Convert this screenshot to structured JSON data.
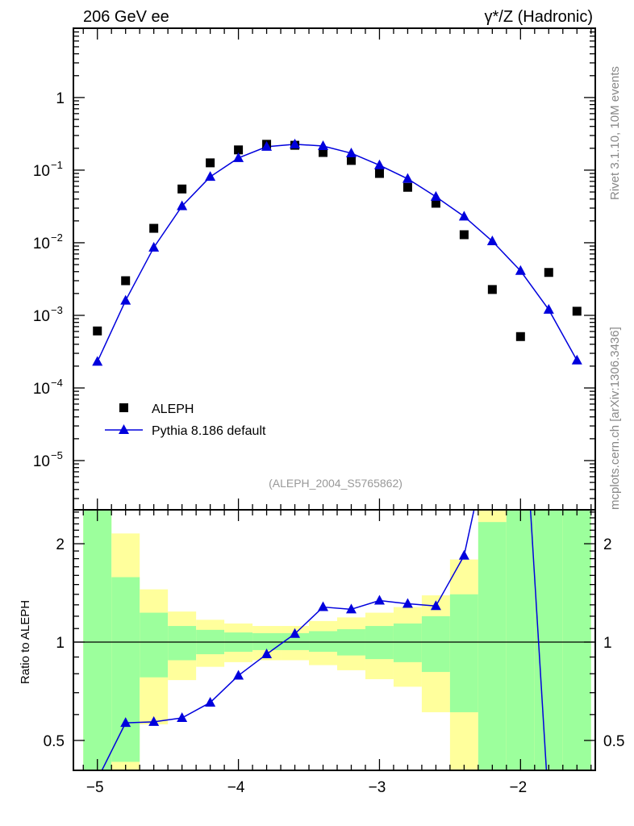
{
  "header": {
    "left_title": "206 GeV ee",
    "right_title": "γ*/Z (Hadronic)",
    "side_text_top": "Rivet 3.1.10,  10M events",
    "side_text_bottom": "mcplots.cern.ch [arXiv:1306.3436]",
    "analysis_id": "(ALEPH_2004_S5765862)"
  },
  "colors": {
    "data": "#000000",
    "mc": "#0000dd",
    "band_inner": "#9cff9c",
    "band_outer": "#ffff9c"
  },
  "chart_data": [
    {
      "type": "scatter",
      "panel": "main",
      "yscale": "log",
      "xlim": [
        -5.17,
        -1.47
      ],
      "ylim": [
        2.1e-06,
        9.0
      ],
      "ytick_labels": [
        {
          "value": 1,
          "label": "1"
        },
        {
          "value": 0.1,
          "label": "10",
          "exp": "−1"
        },
        {
          "value": 0.01,
          "label": "10",
          "exp": "−2"
        },
        {
          "value": 0.001,
          "label": "10",
          "exp": "−3"
        },
        {
          "value": 0.0001,
          "label": "10",
          "exp": "−4"
        },
        {
          "value": 1e-05,
          "label": "10",
          "exp": "−5"
        }
      ],
      "legend": {
        "placement": "bottom-left",
        "entries": [
          "ALEPH",
          "Pythia 8.186 default"
        ]
      },
      "x": [
        -5.0,
        -4.8,
        -4.6,
        -4.4,
        -4.2,
        -4.0,
        -3.8,
        -3.6,
        -3.4,
        -3.2,
        -3.0,
        -2.8,
        -2.6,
        -2.4,
        -2.2,
        -2.0,
        -1.8,
        -1.6
      ],
      "series": [
        {
          "name": "ALEPH",
          "marker": "square",
          "values": [
            0.00061,
            0.003,
            0.0158,
            0.055,
            0.126,
            0.19,
            0.227,
            0.22,
            0.175,
            0.136,
            0.09,
            0.058,
            0.035,
            0.0129,
            0.00227,
            0.00051,
            0.0039,
            0.00114
          ]
        },
        {
          "name": "Pythia 8.186 default",
          "marker": "triangle",
          "values": [
            0.00023,
            0.0016,
            0.0086,
            0.032,
            0.081,
            0.147,
            0.21,
            0.227,
            0.215,
            0.171,
            0.117,
            0.076,
            0.043,
            0.023,
            0.0105,
            0.0041,
            0.0012,
            0.00024
          ]
        }
      ]
    },
    {
      "type": "line",
      "panel": "ratio",
      "yscale": "log",
      "ylabel": "Ratio to ALEPH",
      "xlim": [
        -5.17,
        -1.47
      ],
      "ylim": [
        0.405,
        2.54
      ],
      "ytick_labels": [
        {
          "value": 2,
          "label": "2"
        },
        {
          "value": 1,
          "label": "1"
        },
        {
          "value": 0.5,
          "label": "0.5"
        }
      ],
      "xtick_labels": [
        {
          "value": -5,
          "label": "−5"
        },
        {
          "value": -4,
          "label": "−4"
        },
        {
          "value": -3,
          "label": "−3"
        },
        {
          "value": -2,
          "label": "−2"
        }
      ],
      "x": [
        -5.0,
        -4.8,
        -4.6,
        -4.4,
        -4.2,
        -4.0,
        -3.8,
        -3.6,
        -3.4,
        -3.2,
        -3.0,
        -2.8,
        -2.6,
        -2.4,
        -2.2,
        -2.0,
        -1.8,
        -1.6
      ],
      "ratio": [
        0.38,
        0.566,
        0.57,
        0.586,
        0.653,
        0.79,
        0.918,
        1.06,
        1.28,
        1.26,
        1.34,
        1.31,
        1.29,
        1.84,
        4.6,
        8.0,
        0.31,
        0.21
      ],
      "bin_edges": [
        -5.1,
        -4.9,
        -4.7,
        -4.5,
        -4.3,
        -4.1,
        -3.9,
        -3.7,
        -3.5,
        -3.3,
        -3.1,
        -2.9,
        -2.7,
        -2.5,
        -2.3,
        -2.1,
        -1.9,
        -1.7,
        -1.5
      ],
      "band_outer": [
        [
          0.1,
          10
        ],
        [
          0.1,
          2.15
        ],
        [
          0.56,
          1.45
        ],
        [
          0.765,
          1.24
        ],
        [
          0.84,
          1.17
        ],
        [
          0.868,
          1.14
        ],
        [
          0.88,
          1.12
        ],
        [
          0.88,
          1.12
        ],
        [
          0.85,
          1.16
        ],
        [
          0.82,
          1.19
        ],
        [
          0.77,
          1.23
        ],
        [
          0.73,
          1.28
        ],
        [
          0.61,
          1.39
        ],
        [
          0.1,
          1.79
        ],
        [
          0.1,
          10
        ],
        [
          0.1,
          10
        ],
        [
          0.1,
          10
        ],
        [
          0.1,
          10
        ]
      ],
      "band_inner": [
        [
          0.1,
          10
        ],
        [
          0.43,
          1.58
        ],
        [
          0.78,
          1.23
        ],
        [
          0.88,
          1.12
        ],
        [
          0.918,
          1.09
        ],
        [
          0.934,
          1.07
        ],
        [
          0.945,
          1.065
        ],
        [
          0.945,
          1.065
        ],
        [
          0.934,
          1.08
        ],
        [
          0.91,
          1.095
        ],
        [
          0.887,
          1.12
        ],
        [
          0.868,
          1.14
        ],
        [
          0.81,
          1.2
        ],
        [
          0.61,
          1.4
        ],
        [
          0.1,
          2.33
        ],
        [
          0.1,
          10
        ],
        [
          0.1,
          10
        ],
        [
          0.1,
          10
        ]
      ]
    }
  ]
}
